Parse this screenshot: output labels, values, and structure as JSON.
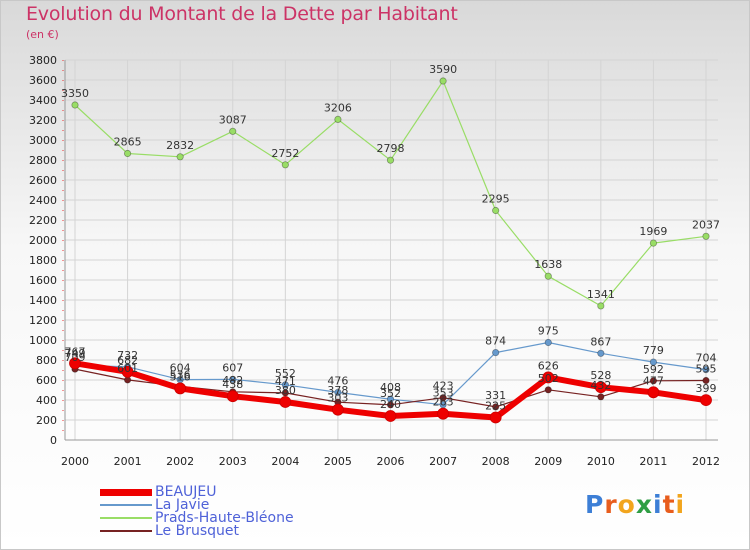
{
  "header": {
    "title": "Evolution du Montant de la Dette par Habitant",
    "unit": "(en €)"
  },
  "logo": {
    "text": "Proxiti",
    "colors": [
      "#3d7fd6",
      "#e85d1d",
      "#f2a51d",
      "#2f9e44",
      "#3d7fd6",
      "#e85d1d",
      "#f2a51d"
    ]
  },
  "chart_data": {
    "type": "line",
    "title": "Evolution du Montant de la Dette par Habitant",
    "ylabel": "(en €)",
    "xlabel": "",
    "ylim": [
      0,
      3800
    ],
    "yticks": [
      0,
      200,
      400,
      600,
      800,
      1000,
      1200,
      1400,
      1600,
      1800,
      2000,
      2200,
      2400,
      2600,
      2800,
      3000,
      3200,
      3400,
      3600,
      3800
    ],
    "categories": [
      "2000",
      "2001",
      "2002",
      "2003",
      "2004",
      "2005",
      "2006",
      "2007",
      "2008",
      "2009",
      "2010",
      "2011",
      "2012"
    ],
    "grid": true,
    "legend_position": "bottom-left",
    "series": [
      {
        "name": "Prads-Haute-Bléone",
        "color": "#99dd66",
        "width": 1.2,
        "values": [
          3350,
          2865,
          2832,
          3087,
          2752,
          3206,
          2798,
          3590,
          2295,
          1638,
          1341,
          1969,
          2037
        ],
        "labels": [
          "3350",
          "2865",
          "2832",
          "3087",
          "2752",
          "3206",
          "2798",
          "3590",
          "2295",
          "1638",
          "1341",
          "1969",
          "2037"
        ]
      },
      {
        "name": "La Javie",
        "color": "#6699cc",
        "width": 1.2,
        "values": [
          749,
          732,
          604,
          607,
          552,
          476,
          408,
          353,
          874,
          975,
          867,
          779,
          704
        ],
        "labels": [
          "749",
          "732",
          "604",
          "607",
          "552",
          "476",
          "408",
          "353",
          "874",
          "975",
          "867",
          "779",
          "704"
        ]
      },
      {
        "name": "Le Brusquet",
        "color": "#772222",
        "width": 1.2,
        "values": [
          709,
          601,
          536,
          482,
          471,
          378,
          352,
          423,
          331,
          502,
          432,
          592,
          595
        ],
        "labels": [
          "709",
          "601",
          "536",
          "482",
          "471",
          "378",
          "352",
          "423",
          "331",
          "502",
          "432",
          "592",
          "595"
        ]
      },
      {
        "name": "BEAUJEU",
        "color": "#ee0000",
        "width": 6,
        "values": [
          767,
          682,
          516,
          438,
          380,
          303,
          240,
          263,
          225,
          626,
          528,
          477,
          399
        ],
        "labels": [
          "767",
          "682",
          "516",
          "438",
          "380",
          "303",
          "240",
          "263",
          "225",
          "626",
          "528",
          "477",
          "399"
        ]
      }
    ]
  },
  "legend": [
    {
      "label": "BEAUJEU",
      "color": "#ee0000",
      "thick": true
    },
    {
      "label": "La Javie",
      "color": "#6699cc",
      "thick": false
    },
    {
      "label": "Prads-Haute-Bléone",
      "color": "#99dd66",
      "thick": false
    },
    {
      "label": "Le Brusquet",
      "color": "#772222",
      "thick": false
    }
  ]
}
